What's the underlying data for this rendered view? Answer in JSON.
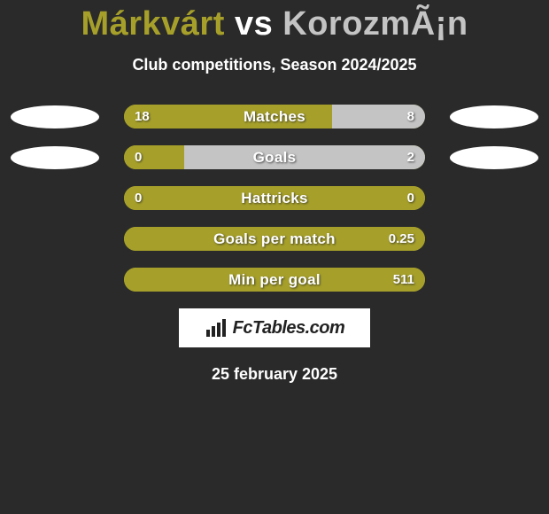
{
  "title": {
    "player1": "Márkvárt",
    "vs": "vs",
    "player2": "KorozmÃ¡n"
  },
  "subtitle": "Club competitions, Season 2024/2025",
  "colors": {
    "player1": "#a6a02a",
    "player2": "#c4c4c4",
    "blob1": "#ffffff",
    "blob2": "#ffffff",
    "bar_bg": "#a6a02a",
    "text": "#ffffff",
    "page_bg": "#2a2a2a"
  },
  "rows": [
    {
      "label": "Matches",
      "left_val": "18",
      "right_val": "8",
      "left_pct": 69,
      "right_pct": 31,
      "left_color": "#a6a02a",
      "right_color": "#c4c4c4",
      "show_blobs": true
    },
    {
      "label": "Goals",
      "left_val": "0",
      "right_val": "2",
      "left_pct": 20,
      "right_pct": 80,
      "left_color": "#a6a02a",
      "right_color": "#c4c4c4",
      "show_blobs": true
    },
    {
      "label": "Hattricks",
      "left_val": "0",
      "right_val": "0",
      "left_pct": 100,
      "right_pct": 0,
      "left_color": "#a6a02a",
      "right_color": "#c4c4c4",
      "show_blobs": false
    },
    {
      "label": "Goals per match",
      "left_val": "",
      "right_val": "0.25",
      "left_pct": 100,
      "right_pct": 0,
      "left_color": "#a6a02a",
      "right_color": "#c4c4c4",
      "show_blobs": false
    },
    {
      "label": "Min per goal",
      "left_val": "",
      "right_val": "511",
      "left_pct": 100,
      "right_pct": 0,
      "left_color": "#a6a02a",
      "right_color": "#c4c4c4",
      "show_blobs": false
    }
  ],
  "logo_text": "FcTables.com",
  "date": "25 february 2025"
}
